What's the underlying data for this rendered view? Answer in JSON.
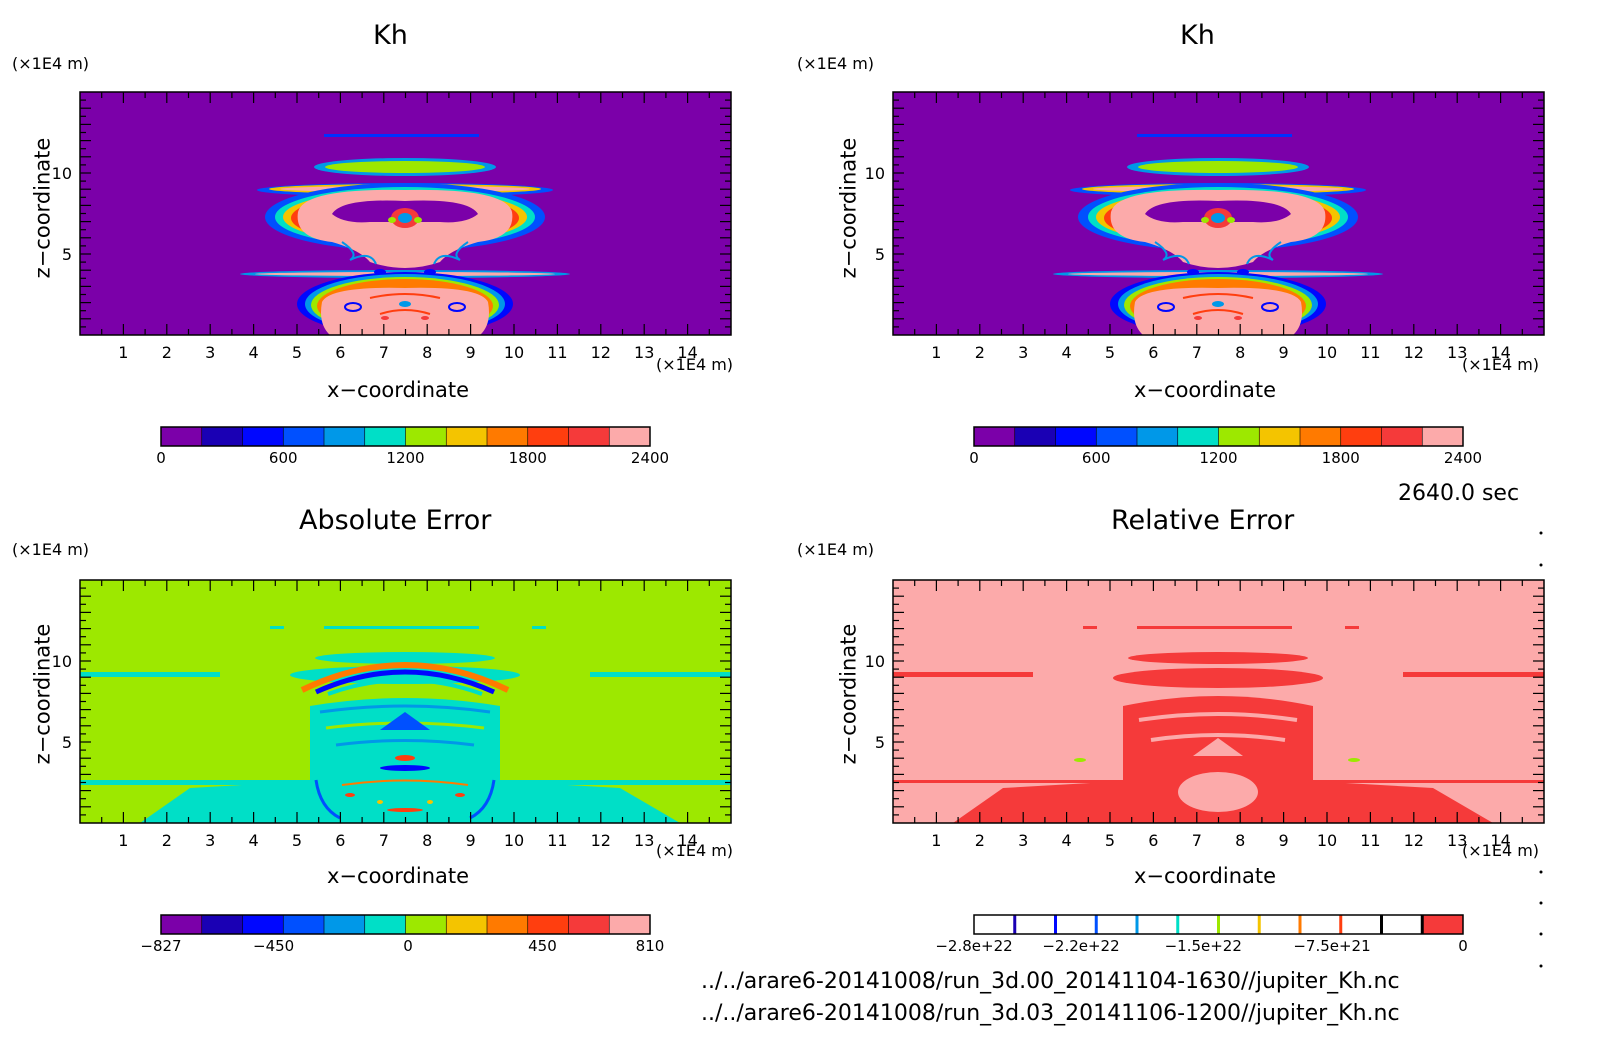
{
  "time_label": "2640.0 sec",
  "files": [
    "../../arare6-20141008/run_3d.00_20141104-1630//jupiter_Kh.nc",
    "../../arare6-20141008/run_3d.03_20141106-1200//jupiter_Kh.nc"
  ],
  "colors": {
    "kh_levels": [
      "#7b00a9",
      "#1a00b4",
      "#0007ff",
      "#0050ff",
      "#0098e8",
      "#00dfc7",
      "#9de800",
      "#f4c400",
      "#ff7a00",
      "#ff3e0f",
      "#f53a3a",
      "#fcaaaa"
    ],
    "abs_levels": [
      "#7b00a9",
      "#1a00b4",
      "#0007ff",
      "#0050ff",
      "#0098e8",
      "#00dfc7",
      "#9de800",
      "#f4c400",
      "#ff7a00",
      "#ff3e0f",
      "#f53a3a",
      "#fcaaaa"
    ],
    "rel_lines": [
      "#1a00b4",
      "#0007ff",
      "#0050ff",
      "#0098e8",
      "#00dfc7",
      "#9de800",
      "#f4c400",
      "#ff7a00",
      "#ff3e0f"
    ],
    "rel_fill": "#f53a3a",
    "rel_bg": "#fcaaaa"
  },
  "chart_data": [
    {
      "type": "heatmap",
      "title": "Kh",
      "xlabel": "x−coordinate",
      "ylabel": "z−coordinate",
      "x_unit": "(×1E4 m)",
      "y_unit": "(×1E4 m)",
      "xlim": [
        0,
        15
      ],
      "ylim": [
        0,
        15
      ],
      "x_ticks": [
        1,
        2,
        3,
        4,
        5,
        6,
        7,
        8,
        9,
        10,
        11,
        12,
        13,
        14
      ],
      "y_ticks": [
        5,
        10
      ],
      "colorbar_ticks": [
        0,
        600,
        1200,
        1800,
        2400
      ],
      "colorbar_range": [
        0,
        2400
      ]
    },
    {
      "type": "heatmap",
      "title": "Kh",
      "xlabel": "x−coordinate",
      "ylabel": "z−coordinate",
      "x_unit": "(×1E4 m)",
      "y_unit": "(×1E4 m)",
      "xlim": [
        0,
        15
      ],
      "ylim": [
        0,
        15
      ],
      "x_ticks": [
        1,
        2,
        3,
        4,
        5,
        6,
        7,
        8,
        9,
        10,
        11,
        12,
        13,
        14
      ],
      "y_ticks": [
        5,
        10
      ],
      "colorbar_ticks": [
        0,
        600,
        1200,
        1800,
        2400
      ],
      "colorbar_range": [
        0,
        2400
      ]
    },
    {
      "type": "heatmap",
      "title": "Absolute Error",
      "xlabel": "x−coordinate",
      "ylabel": "z−coordinate",
      "x_unit": "(×1E4 m)",
      "y_unit": "(×1E4 m)",
      "xlim": [
        0,
        15
      ],
      "ylim": [
        0,
        15
      ],
      "x_ticks": [
        1,
        2,
        3,
        4,
        5,
        6,
        7,
        8,
        9,
        10,
        11,
        12,
        13,
        14
      ],
      "y_ticks": [
        5,
        10
      ],
      "colorbar_ticks": [
        -827,
        -450,
        0,
        450,
        810
      ],
      "colorbar_range": [
        -827,
        810
      ]
    },
    {
      "type": "heatmap",
      "title": "Relative Error",
      "xlabel": "x−coordinate",
      "ylabel": "z−coordinate",
      "x_unit": "(×1E4 m)",
      "y_unit": "(×1E4 m)",
      "xlim": [
        0,
        15
      ],
      "ylim": [
        0,
        15
      ],
      "x_ticks": [
        1,
        2,
        3,
        4,
        5,
        6,
        7,
        8,
        9,
        10,
        11,
        12,
        13,
        14
      ],
      "y_ticks": [
        5,
        10
      ],
      "colorbar_ticks": [
        "−2.8e+22",
        "−2.2e+22",
        "−1.5e+22",
        "−7.5e+21",
        "0"
      ],
      "colorbar_range": [
        -2.8e+22,
        0
      ]
    }
  ]
}
